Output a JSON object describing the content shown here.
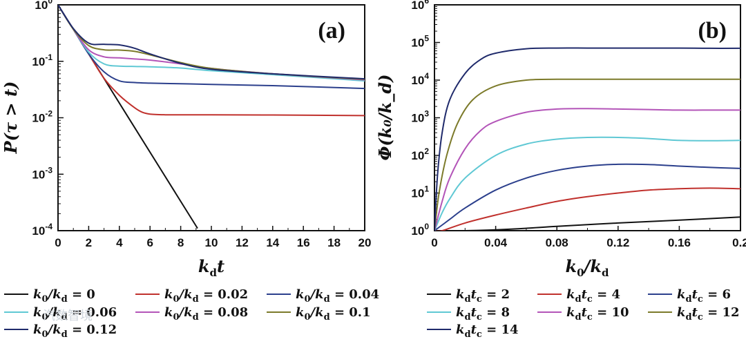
{
  "chart_data": [
    {
      "type": "line",
      "panel": "(a)",
      "xlabel": "k_d t",
      "ylabel": "P(τ > t)",
      "yscale": "log",
      "xlim": [
        0,
        20
      ],
      "ylim": [
        0.0001,
        1
      ],
      "xticks": [
        "0",
        "2",
        "4",
        "6",
        "8",
        "10",
        "12",
        "14",
        "16",
        "18",
        "20"
      ],
      "yticks": [
        {
          "base": "10",
          "exp": "0",
          "value": 1
        },
        {
          "base": "10",
          "exp": "-1",
          "value": 0.1
        },
        {
          "base": "10",
          "exp": "-2",
          "value": 0.01
        },
        {
          "base": "10",
          "exp": "-3",
          "value": 0.001
        },
        {
          "base": "10",
          "exp": "-4",
          "value": 0.0001
        }
      ],
      "series": [
        {
          "name": "k0/kd = 0",
          "color": "#111111",
          "x": [
            0,
            9.1
          ],
          "y": [
            1,
            0.00011
          ]
        },
        {
          "name": "k0/kd = 0.02",
          "color": "#c0302c",
          "x": [
            0,
            1,
            2,
            3,
            4,
            5,
            5.5,
            6,
            7,
            8,
            10,
            14,
            20
          ],
          "y": [
            1,
            0.37,
            0.135,
            0.05,
            0.025,
            0.015,
            0.0125,
            0.0116,
            0.0113,
            0.0113,
            0.0113,
            0.0112,
            0.0109
          ]
        },
        {
          "name": "k0/kd = 0.04",
          "color": "#2b3f8c",
          "x": [
            0,
            1,
            2,
            3,
            4,
            5,
            6,
            8,
            10,
            14,
            20
          ],
          "y": [
            1,
            0.37,
            0.135,
            0.065,
            0.045,
            0.042,
            0.041,
            0.04,
            0.039,
            0.037,
            0.033
          ]
        },
        {
          "name": "k0/kd = 0.06",
          "color": "#5fc8d4",
          "x": [
            0,
            1,
            2,
            3,
            4,
            5,
            6,
            8,
            10,
            14,
            20
          ],
          "y": [
            1,
            0.37,
            0.145,
            0.09,
            0.082,
            0.081,
            0.08,
            0.076,
            0.068,
            0.058,
            0.045
          ]
        },
        {
          "name": "k0/kd = 0.08",
          "color": "#b354b8",
          "x": [
            0,
            1,
            2,
            3,
            4,
            5,
            6,
            8,
            10,
            14,
            20
          ],
          "y": [
            1,
            0.37,
            0.16,
            0.12,
            0.115,
            0.11,
            0.105,
            0.09,
            0.075,
            0.06,
            0.047
          ]
        },
        {
          "name": "k0/kd = 0.1",
          "color": "#7c7a2a",
          "x": [
            0,
            1,
            2,
            3,
            4,
            5,
            6,
            8,
            10,
            14,
            20
          ],
          "y": [
            1,
            0.37,
            0.19,
            0.16,
            0.158,
            0.15,
            0.13,
            0.095,
            0.075,
            0.06,
            0.048
          ]
        },
        {
          "name": "k0/kd = 0.12",
          "color": "#1f2a6b",
          "x": [
            0,
            1,
            2,
            3,
            4,
            5,
            6,
            8,
            10,
            14,
            20
          ],
          "y": [
            1,
            0.38,
            0.21,
            0.2,
            0.195,
            0.17,
            0.135,
            0.092,
            0.072,
            0.06,
            0.049
          ]
        }
      ],
      "legend": [
        {
          "pre": "k",
          "sub": "0",
          "mid": "/k",
          "sub2": "d",
          "val": " = 0",
          "color": "#111111"
        },
        {
          "pre": "k",
          "sub": "0",
          "mid": "/k",
          "sub2": "d",
          "val": " = 0.02",
          "color": "#c0302c"
        },
        {
          "pre": "k",
          "sub": "0",
          "mid": "/k",
          "sub2": "d",
          "val": " = 0.04",
          "color": "#2b3f8c"
        },
        {
          "pre": "k",
          "sub": "0",
          "mid": "/k",
          "sub2": "d",
          "val": " = 0.06",
          "color": "#5fc8d4"
        },
        {
          "pre": "k",
          "sub": "0",
          "mid": "/k",
          "sub2": "d",
          "val": " = 0.08",
          "color": "#b354b8"
        },
        {
          "pre": "k",
          "sub": "0",
          "mid": "/k",
          "sub2": "d",
          "val": " = 0.1",
          "color": "#7c7a2a"
        },
        {
          "pre": "k",
          "sub": "0",
          "mid": "/k",
          "sub2": "d",
          "val": " = 0.12",
          "color": "#1f2a6b"
        }
      ]
    },
    {
      "type": "line",
      "panel": "(b)",
      "xlabel": "k_0 / k_d",
      "ylabel": "Φ(k_0 / k_d)",
      "yscale": "log",
      "xlim": [
        0,
        0.2
      ],
      "ylim": [
        1,
        1000000
      ],
      "xticks": [
        "0",
        "0.04",
        "0.08",
        "0.12",
        "0.16",
        "0.2"
      ],
      "yticks": [
        {
          "base": "10",
          "exp": "6",
          "value": 1000000
        },
        {
          "base": "10",
          "exp": "5",
          "value": 100000
        },
        {
          "base": "10",
          "exp": "4",
          "value": 10000
        },
        {
          "base": "10",
          "exp": "3",
          "value": 1000
        },
        {
          "base": "10",
          "exp": "2",
          "value": 100
        },
        {
          "base": "10",
          "exp": "1",
          "value": 10
        },
        {
          "base": "10",
          "exp": "0",
          "value": 1
        }
      ],
      "series": [
        {
          "name": "kd tc = 2",
          "color": "#111111",
          "x": [
            0,
            0.02,
            0.05,
            0.08,
            0.12,
            0.16,
            0.2
          ],
          "y": [
            1,
            1,
            1.1,
            1.3,
            1.6,
            1.9,
            2.3
          ]
        },
        {
          "name": "kd tc = 4",
          "color": "#c0302c",
          "x": [
            0,
            0.005,
            0.02,
            0.04,
            0.06,
            0.08,
            0.1,
            0.12,
            0.14,
            0.16,
            0.18,
            0.2
          ],
          "y": [
            1,
            1,
            1.6,
            2.6,
            4,
            6,
            8,
            10,
            12,
            13,
            13.5,
            13
          ]
        },
        {
          "name": "kd tc = 6",
          "color": "#2b3f8c",
          "x": [
            0,
            0.01,
            0.02,
            0.04,
            0.06,
            0.08,
            0.1,
            0.12,
            0.14,
            0.16,
            0.18,
            0.2
          ],
          "y": [
            1,
            2,
            4,
            12,
            25,
            40,
            52,
            58,
            57,
            52,
            48,
            45
          ]
        },
        {
          "name": "kd tc = 8",
          "color": "#5fc8d4",
          "x": [
            0,
            0.005,
            0.01,
            0.02,
            0.04,
            0.06,
            0.08,
            0.1,
            0.12,
            0.14,
            0.16,
            0.18,
            0.2
          ],
          "y": [
            1,
            3,
            7,
            25,
            100,
            200,
            270,
            300,
            300,
            280,
            250,
            245,
            250
          ]
        },
        {
          "name": "kd tc = 10",
          "color": "#b354b8",
          "x": [
            0,
            0.005,
            0.01,
            0.02,
            0.03,
            0.04,
            0.06,
            0.08,
            0.1,
            0.12,
            0.14,
            0.16,
            0.18,
            0.2
          ],
          "y": [
            1,
            6,
            25,
            150,
            450,
            800,
            1400,
            1700,
            1750,
            1700,
            1650,
            1600,
            1600,
            1600
          ]
        },
        {
          "name": "kd tc = 12",
          "color": "#7c7a2a",
          "x": [
            0,
            0.003,
            0.008,
            0.015,
            0.025,
            0.04,
            0.06,
            0.08,
            0.1,
            0.12,
            0.14,
            0.16,
            0.18,
            0.2
          ],
          "y": [
            1,
            10,
            100,
            700,
            3000,
            7000,
            10000,
            10500,
            10500,
            10500,
            10500,
            10500,
            10500,
            10500
          ]
        },
        {
          "name": "kd tc = 14",
          "color": "#1f2a6b",
          "x": [
            0,
            0.002,
            0.005,
            0.01,
            0.02,
            0.03,
            0.04,
            0.06,
            0.08,
            0.1,
            0.12,
            0.14,
            0.16,
            0.18,
            0.2
          ],
          "y": [
            1,
            30,
            400,
            3000,
            15000,
            35000,
            52000,
            68000,
            71000,
            71000,
            71000,
            71000,
            71000,
            70000,
            70000
          ]
        }
      ],
      "legend": [
        {
          "pre": "k",
          "sub": "d",
          "mid": "t",
          "sub2": "c",
          "val": " = 2",
          "color": "#111111"
        },
        {
          "pre": "k",
          "sub": "d",
          "mid": "t",
          "sub2": "c",
          "val": " = 4",
          "color": "#c0302c"
        },
        {
          "pre": "k",
          "sub": "d",
          "mid": "t",
          "sub2": "c",
          "val": " = 6",
          "color": "#2b3f8c"
        },
        {
          "pre": "k",
          "sub": "d",
          "mid": "t",
          "sub2": "c",
          "val": " = 8",
          "color": "#5fc8d4"
        },
        {
          "pre": "k",
          "sub": "d",
          "mid": "t",
          "sub2": "c",
          "val": " = 10",
          "color": "#b354b8"
        },
        {
          "pre": "k",
          "sub": "d",
          "mid": "t",
          "sub2": "c",
          "val": " = 12",
          "color": "#7c7a2a"
        },
        {
          "pre": "k",
          "sub": "d",
          "mid": "t",
          "sub2": "c",
          "val": " = 14",
          "color": "#1f2a6b"
        }
      ]
    }
  ],
  "labels": {
    "a_panel": "(a)",
    "b_panel": "(b)",
    "a_xlabel_k": "k",
    "a_xlabel_sub": "d",
    "a_xlabel_t": "t",
    "a_ylabel": "P(τ > t)",
    "b_xlabel_k": "k",
    "b_xlabel_sub": "0",
    "b_xlabel_mid": "/k",
    "b_xlabel_sub2": "d",
    "b_ylabel": "Φ(k₀/k_d)"
  },
  "watermark": "汽数智境"
}
